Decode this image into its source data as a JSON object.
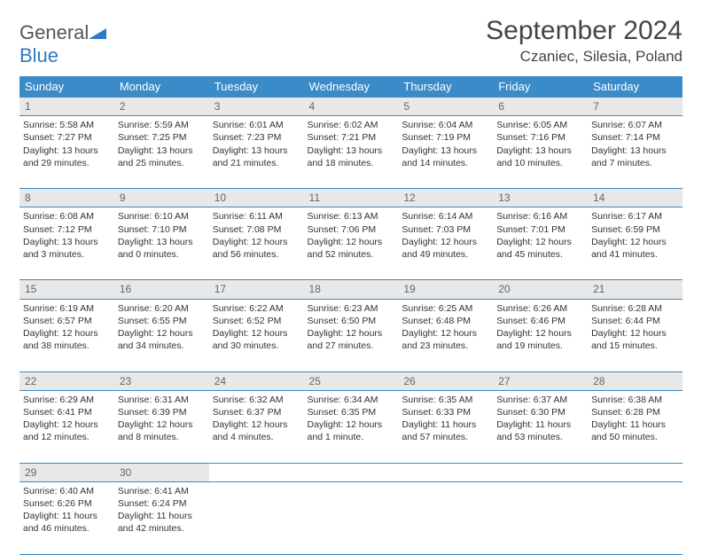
{
  "logo": {
    "word1": "General",
    "word2": "Blue"
  },
  "title": "September 2024",
  "location": "Czaniec, Silesia, Poland",
  "colors": {
    "header_bg": "#3b8bc8",
    "header_text": "#ffffff",
    "daynum_bg": "#e8e8e8",
    "daynum_text": "#666666",
    "rule": "#3b8bc8",
    "body_text": "#333333",
    "logo_gray": "#555555",
    "logo_blue": "#2f7bbf"
  },
  "day_headers": [
    "Sunday",
    "Monday",
    "Tuesday",
    "Wednesday",
    "Thursday",
    "Friday",
    "Saturday"
  ],
  "weeks": [
    {
      "nums": [
        "1",
        "2",
        "3",
        "4",
        "5",
        "6",
        "7"
      ],
      "cells": [
        {
          "sunrise": "Sunrise: 5:58 AM",
          "sunset": "Sunset: 7:27 PM",
          "d1": "Daylight: 13 hours",
          "d2": "and 29 minutes."
        },
        {
          "sunrise": "Sunrise: 5:59 AM",
          "sunset": "Sunset: 7:25 PM",
          "d1": "Daylight: 13 hours",
          "d2": "and 25 minutes."
        },
        {
          "sunrise": "Sunrise: 6:01 AM",
          "sunset": "Sunset: 7:23 PM",
          "d1": "Daylight: 13 hours",
          "d2": "and 21 minutes."
        },
        {
          "sunrise": "Sunrise: 6:02 AM",
          "sunset": "Sunset: 7:21 PM",
          "d1": "Daylight: 13 hours",
          "d2": "and 18 minutes."
        },
        {
          "sunrise": "Sunrise: 6:04 AM",
          "sunset": "Sunset: 7:19 PM",
          "d1": "Daylight: 13 hours",
          "d2": "and 14 minutes."
        },
        {
          "sunrise": "Sunrise: 6:05 AM",
          "sunset": "Sunset: 7:16 PM",
          "d1": "Daylight: 13 hours",
          "d2": "and 10 minutes."
        },
        {
          "sunrise": "Sunrise: 6:07 AM",
          "sunset": "Sunset: 7:14 PM",
          "d1": "Daylight: 13 hours",
          "d2": "and 7 minutes."
        }
      ]
    },
    {
      "nums": [
        "8",
        "9",
        "10",
        "11",
        "12",
        "13",
        "14"
      ],
      "cells": [
        {
          "sunrise": "Sunrise: 6:08 AM",
          "sunset": "Sunset: 7:12 PM",
          "d1": "Daylight: 13 hours",
          "d2": "and 3 minutes."
        },
        {
          "sunrise": "Sunrise: 6:10 AM",
          "sunset": "Sunset: 7:10 PM",
          "d1": "Daylight: 13 hours",
          "d2": "and 0 minutes."
        },
        {
          "sunrise": "Sunrise: 6:11 AM",
          "sunset": "Sunset: 7:08 PM",
          "d1": "Daylight: 12 hours",
          "d2": "and 56 minutes."
        },
        {
          "sunrise": "Sunrise: 6:13 AM",
          "sunset": "Sunset: 7:06 PM",
          "d1": "Daylight: 12 hours",
          "d2": "and 52 minutes."
        },
        {
          "sunrise": "Sunrise: 6:14 AM",
          "sunset": "Sunset: 7:03 PM",
          "d1": "Daylight: 12 hours",
          "d2": "and 49 minutes."
        },
        {
          "sunrise": "Sunrise: 6:16 AM",
          "sunset": "Sunset: 7:01 PM",
          "d1": "Daylight: 12 hours",
          "d2": "and 45 minutes."
        },
        {
          "sunrise": "Sunrise: 6:17 AM",
          "sunset": "Sunset: 6:59 PM",
          "d1": "Daylight: 12 hours",
          "d2": "and 41 minutes."
        }
      ]
    },
    {
      "nums": [
        "15",
        "16",
        "17",
        "18",
        "19",
        "20",
        "21"
      ],
      "cells": [
        {
          "sunrise": "Sunrise: 6:19 AM",
          "sunset": "Sunset: 6:57 PM",
          "d1": "Daylight: 12 hours",
          "d2": "and 38 minutes."
        },
        {
          "sunrise": "Sunrise: 6:20 AM",
          "sunset": "Sunset: 6:55 PM",
          "d1": "Daylight: 12 hours",
          "d2": "and 34 minutes."
        },
        {
          "sunrise": "Sunrise: 6:22 AM",
          "sunset": "Sunset: 6:52 PM",
          "d1": "Daylight: 12 hours",
          "d2": "and 30 minutes."
        },
        {
          "sunrise": "Sunrise: 6:23 AM",
          "sunset": "Sunset: 6:50 PM",
          "d1": "Daylight: 12 hours",
          "d2": "and 27 minutes."
        },
        {
          "sunrise": "Sunrise: 6:25 AM",
          "sunset": "Sunset: 6:48 PM",
          "d1": "Daylight: 12 hours",
          "d2": "and 23 minutes."
        },
        {
          "sunrise": "Sunrise: 6:26 AM",
          "sunset": "Sunset: 6:46 PM",
          "d1": "Daylight: 12 hours",
          "d2": "and 19 minutes."
        },
        {
          "sunrise": "Sunrise: 6:28 AM",
          "sunset": "Sunset: 6:44 PM",
          "d1": "Daylight: 12 hours",
          "d2": "and 15 minutes."
        }
      ]
    },
    {
      "nums": [
        "22",
        "23",
        "24",
        "25",
        "26",
        "27",
        "28"
      ],
      "cells": [
        {
          "sunrise": "Sunrise: 6:29 AM",
          "sunset": "Sunset: 6:41 PM",
          "d1": "Daylight: 12 hours",
          "d2": "and 12 minutes."
        },
        {
          "sunrise": "Sunrise: 6:31 AM",
          "sunset": "Sunset: 6:39 PM",
          "d1": "Daylight: 12 hours",
          "d2": "and 8 minutes."
        },
        {
          "sunrise": "Sunrise: 6:32 AM",
          "sunset": "Sunset: 6:37 PM",
          "d1": "Daylight: 12 hours",
          "d2": "and 4 minutes."
        },
        {
          "sunrise": "Sunrise: 6:34 AM",
          "sunset": "Sunset: 6:35 PM",
          "d1": "Daylight: 12 hours",
          "d2": "and 1 minute."
        },
        {
          "sunrise": "Sunrise: 6:35 AM",
          "sunset": "Sunset: 6:33 PM",
          "d1": "Daylight: 11 hours",
          "d2": "and 57 minutes."
        },
        {
          "sunrise": "Sunrise: 6:37 AM",
          "sunset": "Sunset: 6:30 PM",
          "d1": "Daylight: 11 hours",
          "d2": "and 53 minutes."
        },
        {
          "sunrise": "Sunrise: 6:38 AM",
          "sunset": "Sunset: 6:28 PM",
          "d1": "Daylight: 11 hours",
          "d2": "and 50 minutes."
        }
      ]
    },
    {
      "nums": [
        "29",
        "30",
        "",
        "",
        "",
        "",
        ""
      ],
      "cells": [
        {
          "sunrise": "Sunrise: 6:40 AM",
          "sunset": "Sunset: 6:26 PM",
          "d1": "Daylight: 11 hours",
          "d2": "and 46 minutes."
        },
        {
          "sunrise": "Sunrise: 6:41 AM",
          "sunset": "Sunset: 6:24 PM",
          "d1": "Daylight: 11 hours",
          "d2": "and 42 minutes."
        },
        null,
        null,
        null,
        null,
        null
      ]
    }
  ]
}
